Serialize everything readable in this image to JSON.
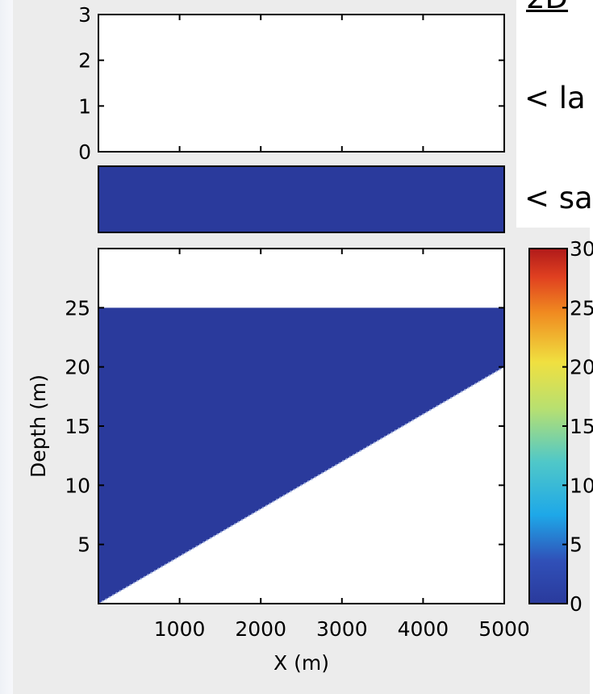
{
  "side_text": {
    "heading": "2D",
    "line1": "< la",
    "line2": "< sa"
  },
  "colors": {
    "water": "#2a3a9c",
    "figure_background": "#ececec"
  },
  "chart_data": [
    {
      "type": "line",
      "panel": "top",
      "xlim": [
        0,
        5000
      ],
      "ylim": [
        0,
        3
      ],
      "yticks": [
        0,
        1,
        2,
        3
      ],
      "series": []
    },
    {
      "type": "heatmap",
      "panel": "strip",
      "values": [
        [
          0
        ]
      ],
      "note_color": "uniform dark blue"
    },
    {
      "type": "area",
      "panel": "main",
      "xlabel": "X (m)",
      "ylabel": "Depth (m)",
      "xlim": [
        0,
        5000
      ],
      "ylim": [
        0,
        30
      ],
      "xticks": [
        1000,
        2000,
        3000,
        4000,
        5000
      ],
      "yticks": [
        5,
        10,
        15,
        20,
        25
      ],
      "filled_region": {
        "top_depth": 25,
        "bottom_boundary": {
          "x": [
            0,
            5000
          ],
          "depth": [
            0,
            20
          ]
        },
        "value": 0
      },
      "colorbar": {
        "ticks": [
          0,
          5,
          10,
          15,
          20,
          25,
          30
        ],
        "tick_labels": [
          "0",
          "5",
          "10",
          "15",
          "20",
          "25",
          "30"
        ],
        "range": [
          0,
          30
        ],
        "colormap": "jet"
      }
    }
  ]
}
